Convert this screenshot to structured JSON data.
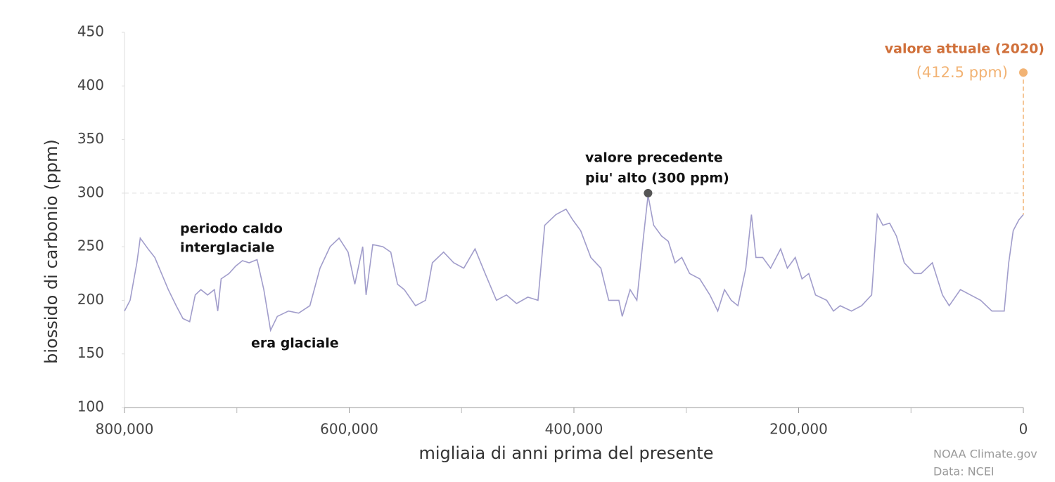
{
  "chart_data": {
    "type": "line",
    "ylabel": "biossido di carbonio (ppm)",
    "xlabel": "migliaia di anni prima del presente",
    "color": "#a19dcb",
    "xlim": [
      800000,
      0
    ],
    "xticks": [
      {
        "value": 800000,
        "label": "800,000"
      },
      {
        "value": 600000,
        "label": "600,000"
      },
      {
        "value": 400000,
        "label": "400,000"
      },
      {
        "value": 200000,
        "label": "200,000"
      },
      0
    ],
    "xminorticks": [
      700000,
      500000,
      300000,
      100000
    ],
    "ylim": [
      100,
      450
    ],
    "yticks": [
      100,
      150,
      200,
      250,
      300,
      350,
      400,
      450
    ],
    "x": [
      800000,
      795000,
      789000,
      786000,
      779000,
      773000,
      767000,
      761000,
      754000,
      748000,
      742000,
      737000,
      732000,
      726000,
      720000,
      717000,
      714000,
      707000,
      701000,
      695000,
      689000,
      682000,
      676000,
      670000,
      664000,
      654000,
      645000,
      635000,
      626000,
      617000,
      609000,
      601000,
      595000,
      588000,
      585000,
      579000,
      570000,
      563000,
      557000,
      551000,
      541000,
      532000,
      526000,
      516000,
      507000,
      498000,
      488000,
      479000,
      469000,
      460000,
      451000,
      441000,
      432000,
      426000,
      416000,
      407000,
      401000,
      394000,
      385000,
      376000,
      369000,
      360000,
      357000,
      350000,
      344000,
      338000,
      334000,
      329000,
      322000,
      316000,
      310000,
      304000,
      297000,
      288000,
      279000,
      272000,
      266000,
      260000,
      254000,
      247000,
      242000,
      238000,
      232000,
      225000,
      216000,
      210000,
      203000,
      197000,
      191000,
      185000,
      175000,
      169000,
      163000,
      153000,
      144000,
      135000,
      130000,
      125000,
      119000,
      113000,
      106000,
      97000,
      91000,
      81000,
      72000,
      66000,
      56000,
      47000,
      38000,
      28000,
      22000,
      17000,
      13000,
      9000,
      4000,
      0
    ],
    "values": [
      190,
      200,
      235,
      258,
      248,
      240,
      225,
      210,
      195,
      183,
      180,
      205,
      210,
      205,
      210,
      190,
      220,
      225,
      232,
      237,
      235,
      238,
      210,
      172,
      185,
      190,
      188,
      195,
      230,
      250,
      258,
      245,
      215,
      250,
      205,
      252,
      250,
      245,
      215,
      210,
      195,
      200,
      235,
      245,
      235,
      230,
      248,
      225,
      200,
      205,
      197,
      203,
      200,
      270,
      280,
      285,
      275,
      265,
      240,
      230,
      200,
      200,
      185,
      210,
      200,
      260,
      298,
      270,
      260,
      255,
      235,
      240,
      225,
      220,
      205,
      190,
      210,
      200,
      195,
      230,
      280,
      240,
      240,
      230,
      248,
      230,
      240,
      220,
      225,
      205,
      200,
      190,
      195,
      190,
      195,
      205,
      280,
      270,
      272,
      260,
      235,
      225,
      225,
      235,
      205,
      195,
      210,
      205,
      200,
      190,
      190,
      190,
      235,
      265,
      275,
      280
    ],
    "annotations": {
      "interglacial": [
        "periodo caldo",
        "interglaciale"
      ],
      "glacial": "era glaciale",
      "previous_high": {
        "lines": [
          "valore precedente",
          "piu' alto (300 ppm)"
        ],
        "x": 334000,
        "y": 300
      },
      "current": {
        "label": "valore attuale (2020)",
        "value_label": "(412.5 ppm)",
        "x": 0,
        "y": 412.5
      }
    },
    "source": [
      "NOAA Climate.gov",
      "Data: NCEI"
    ]
  }
}
